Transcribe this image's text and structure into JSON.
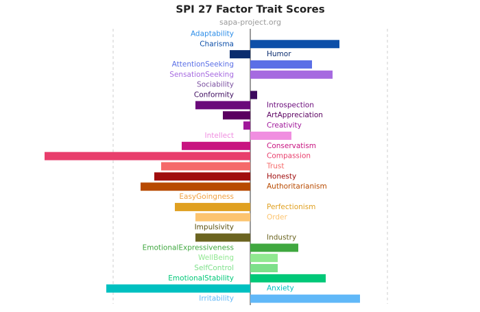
{
  "chart_data": {
    "type": "bar",
    "orientation": "horizontal",
    "title": "SPI 27 Factor Trait Scores",
    "subtitle": "sapa-project.org",
    "categories": [
      "Adaptability",
      "Charisma",
      "Humor",
      "AttentionSeeking",
      "SensationSeeking",
      "Sociability",
      "Conformity",
      "Introspection",
      "ArtAppreciation",
      "Creativity",
      "Intellect",
      "Conservatism",
      "Compassion",
      "Trust",
      "Honesty",
      "Authoritarianism",
      "EasyGoingness",
      "Perfectionism",
      "Order",
      "Impulsivity",
      "Industry",
      "EmotionalExpressiveness",
      "WellBeing",
      "SelfControl",
      "EmotionalStability",
      "Anxiety",
      "Irritability"
    ],
    "values": [
      0,
      0.65,
      -0.15,
      0.45,
      0.6,
      0,
      0.05,
      -0.4,
      -0.2,
      -0.05,
      0.3,
      -0.5,
      -1.5,
      -0.65,
      -0.7,
      -0.8,
      0,
      -0.55,
      -0.4,
      0,
      -0.4,
      0.35,
      0.2,
      0.2,
      0.55,
      -1.05,
      0.8
    ],
    "colors": [
      "#2a8ce8",
      "#0d4fa8",
      "#0a2c6e",
      "#5b6fe6",
      "#a66ae0",
      "#7b50a0",
      "#3d0a5e",
      "#6a0a7a",
      "#5a0060",
      "#a0189a",
      "#f08ee0",
      "#c81480",
      "#e83e6c",
      "#f56a6a",
      "#a00d0d",
      "#b84a00",
      "#f0a040",
      "#e0a020",
      "#fcc470",
      "#5a5010",
      "#6b6420",
      "#40a840",
      "#90e890",
      "#7de08a",
      "#00c878",
      "#00c0c0",
      "#60b8f8"
    ],
    "xlim": [
      -1.5,
      1.5
    ],
    "xticks": [
      -1,
      0,
      1
    ],
    "grid": true
  }
}
